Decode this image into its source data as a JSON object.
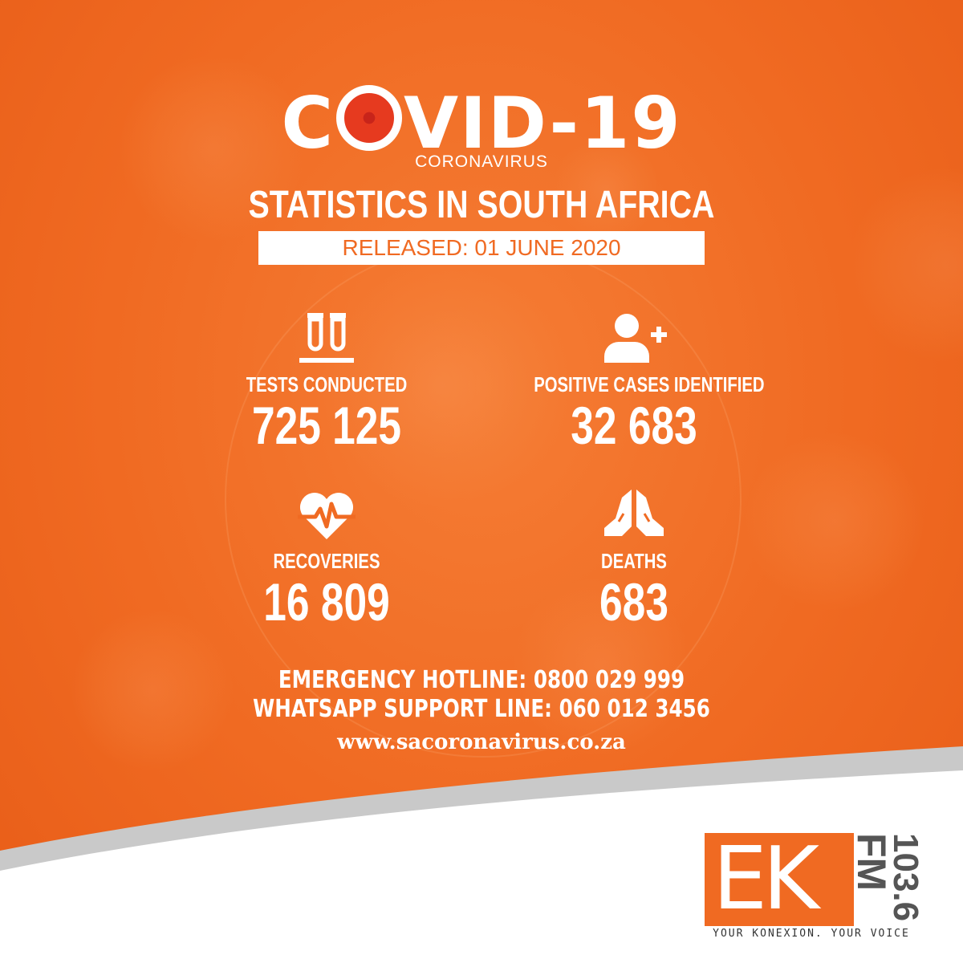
{
  "colors": {
    "background": "#f06a22",
    "accent_red": "#e63a1f",
    "text": "#ffffff",
    "panel": "#ffffff"
  },
  "header": {
    "title_part1": "C",
    "title_part2": "VID-19",
    "subtitle": "CORONAVIRUS",
    "headline": "STATISTICS IN SOUTH AFRICA",
    "released": "RELEASED: 01 JUNE 2020"
  },
  "stats": [
    {
      "icon": "test-tubes-icon",
      "label": "TESTS CONDUCTED",
      "value": "725 125"
    },
    {
      "icon": "add-person-icon",
      "label": "POSITIVE CASES IDENTIFIED",
      "value": "32 683"
    },
    {
      "icon": "heartbeat-icon",
      "label": "RECOVERIES",
      "value": "16 809"
    },
    {
      "icon": "praying-hands-icon",
      "label": "DEATHS",
      "value": "683"
    }
  ],
  "contact": {
    "hotline": "EMERGENCY HOTLINE: 0800 029 999",
    "whatsapp": "WHATSAPP SUPPORT LINE: 060 012 3456",
    "website": "www.sacoronavirus.co.za"
  },
  "logo": {
    "letters": "EK",
    "fm": "FM",
    "frequency": "103.6",
    "tagline": "YOUR KONEXION. YOUR VOICE"
  }
}
